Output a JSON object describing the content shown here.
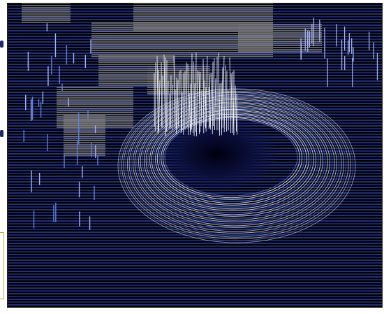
{
  "image": {
    "subject": "wireframe-surface-plot",
    "colors": {
      "background": "#000000",
      "line_dark": "#2b3aa0",
      "line_mid": "#5f7fe0",
      "line_light": "#ffffff",
      "plateau": "#7a7a7a"
    }
  }
}
